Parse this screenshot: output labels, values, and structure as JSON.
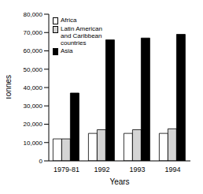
{
  "chart_data": {
    "type": "bar",
    "categories": [
      "1979-81",
      "1992",
      "1993",
      "1994"
    ],
    "series": [
      {
        "name": "Africa",
        "color": "#ffffff",
        "values": [
          12000,
          15000,
          15000,
          15000
        ]
      },
      {
        "name": "Latin American and Caribbean countries",
        "color": "#d4d4d4",
        "values": [
          12000,
          17000,
          17000,
          17500
        ]
      },
      {
        "name": "Asia",
        "color": "#000000",
        "values": [
          37000,
          66000,
          67000,
          69000
        ]
      }
    ],
    "x_label": "Years",
    "y_label": "Tonnes",
    "ylim": [
      0,
      80000
    ],
    "yticks": [
      0,
      {
        "value": 10000,
        "label": "10,000"
      },
      {
        "value": 20000,
        "label": "20,000"
      },
      {
        "value": 30000,
        "label": "30,000"
      },
      {
        "value": 40000,
        "label": "40,000"
      },
      {
        "value": 50000,
        "label": "50,000"
      },
      {
        "value": 60000,
        "label": "60,000"
      },
      {
        "value": 70000,
        "label": "70,000"
      },
      {
        "value": 80000,
        "label": "80,000"
      }
    ],
    "legend": "upper left",
    "grid": false
  }
}
